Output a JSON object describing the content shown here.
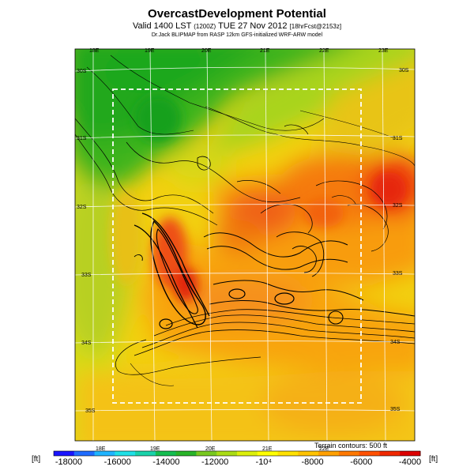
{
  "title": "OvercastDevelopment Potential",
  "subtitle_main": "Valid 1400 LST",
  "subtitle_code": "(1200Z)",
  "subtitle_date": "TUE 27 Nov 2012",
  "subtitle_forecast": "[18hrFcst@2153z]",
  "credit": "Dr.Jack BLIPMAP from RASP 12km GFS-initialized WRF-ARW model",
  "contour_note": "Terrain contours: 500 ft",
  "unit_left": "[ft]",
  "unit_right": "[ft]",
  "lon_ticks_top": [
    "18E",
    "19E",
    "20E",
    "21E",
    "22E",
    "23E"
  ],
  "lon_ticks_bottom": [
    "18E",
    "19E",
    "20E",
    "21E",
    "22E"
  ],
  "lat_ticks_left": [
    "30S",
    "31S",
    "32S",
    "33S",
    "34S",
    "35S"
  ],
  "lat_ticks_right": [
    "30S",
    "31S",
    "32S",
    "33S",
    "34S",
    "35S"
  ],
  "colorbar_labels": [
    "-18000",
    "-16000",
    "-14000",
    "-12000",
    "-10⁴",
    "-8000",
    "-6000",
    "-4000"
  ],
  "colorbar_colors": [
    "#1a14ff",
    "#1f6cff",
    "#1fb4ff",
    "#1fe0e6",
    "#19d2aa",
    "#14be50",
    "#28b428",
    "#78c81e",
    "#aadc14",
    "#dcf00a",
    "#ffff00",
    "#ffe100",
    "#ffc300",
    "#ffa000",
    "#ff7800",
    "#ff5000",
    "#f02800",
    "#dc0000"
  ]
}
